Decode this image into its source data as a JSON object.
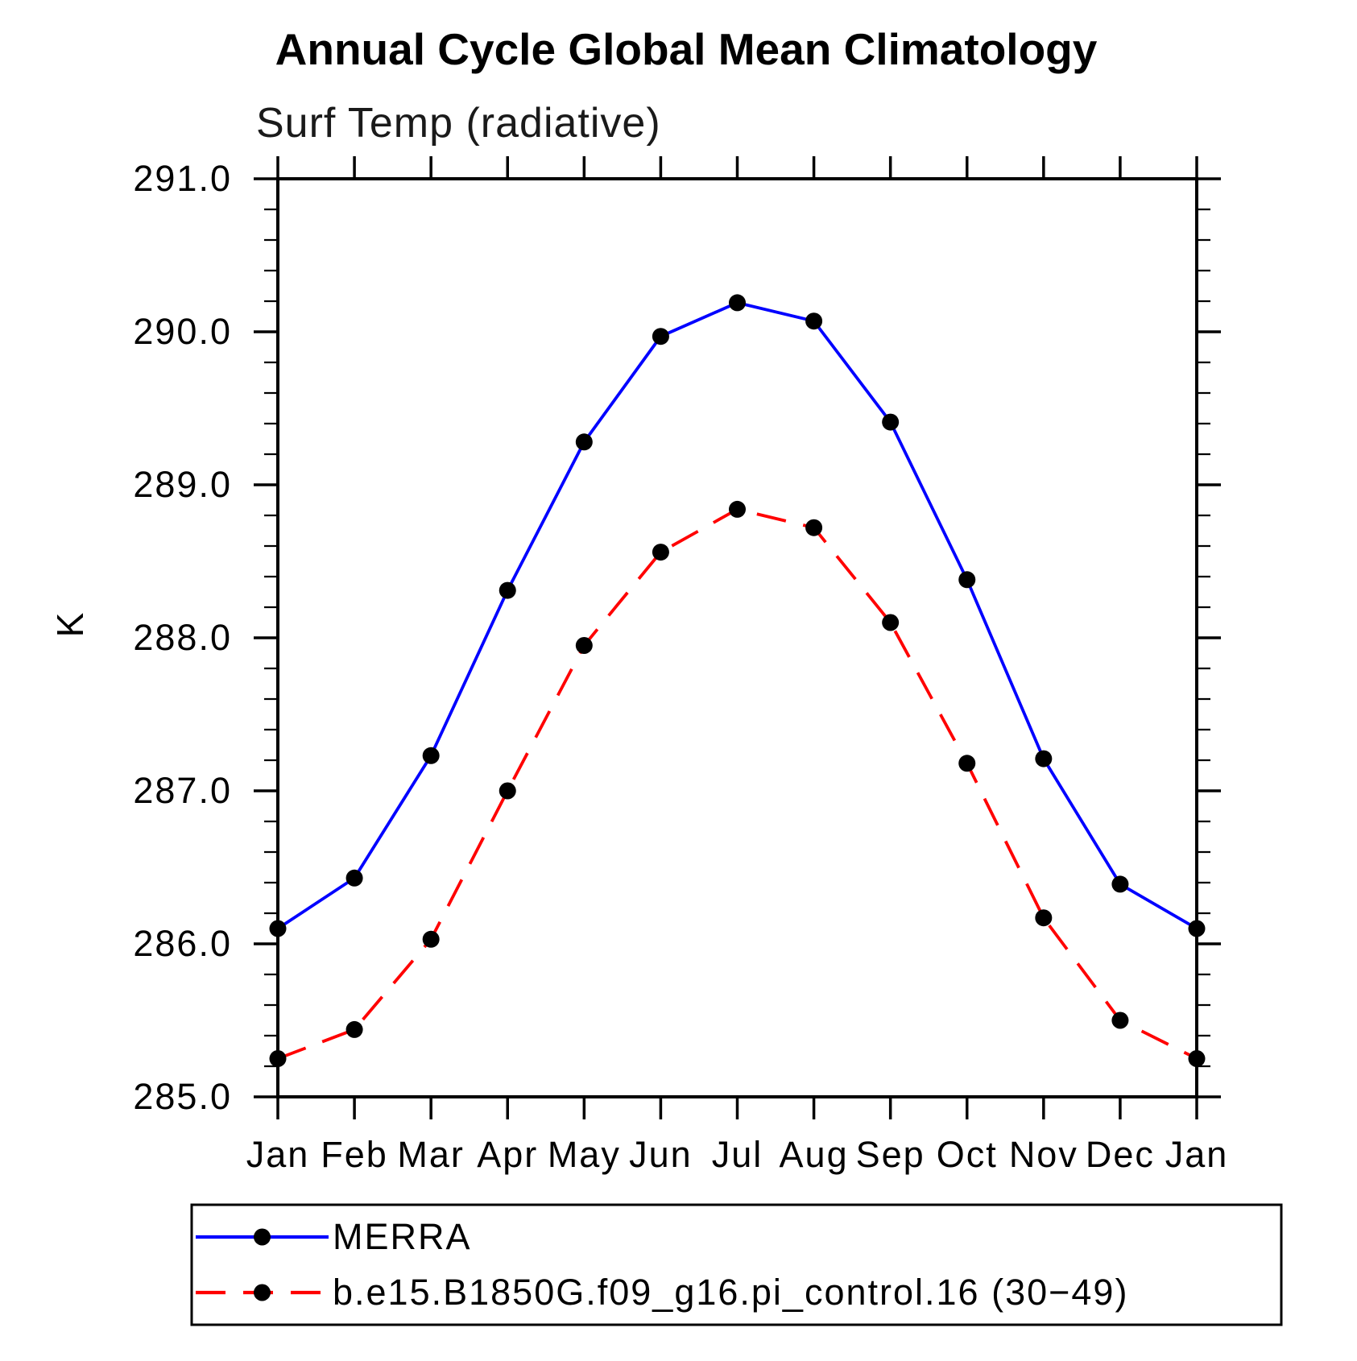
{
  "title": "Annual Cycle Global Mean Climatology",
  "subtitle": "Surf Temp (radiative)",
  "chart_data": {
    "type": "line",
    "title": "Annual Cycle Global Mean Climatology",
    "subtitle": "Surf Temp (radiative)",
    "xlabel": "",
    "ylabel": "K",
    "categories": [
      "Jan",
      "Feb",
      "Mar",
      "Apr",
      "May",
      "Jun",
      "Jul",
      "Aug",
      "Sep",
      "Oct",
      "Nov",
      "Dec",
      "Jan"
    ],
    "ylim": [
      285.0,
      291.0
    ],
    "ytick_major": 1.0,
    "ytick_minor": 0.2,
    "ytick_format_decimals": 1,
    "grid": false,
    "legend_position": "bottom",
    "frame_color": "#000000",
    "marker_color": "#000000",
    "series": [
      {
        "name": "MERRA",
        "color": "#0000ff",
        "style": "solid",
        "marker": "circle",
        "values": [
          286.1,
          286.43,
          287.23,
          288.31,
          289.28,
          289.97,
          290.19,
          290.07,
          289.41,
          288.38,
          287.21,
          286.39,
          286.1
        ]
      },
      {
        "name": "b.e15.B1850G.f09_g16.pi_control.16 (30−49)",
        "color": "#ff0000",
        "style": "dashed",
        "marker": "circle",
        "values": [
          285.25,
          285.44,
          286.03,
          287.0,
          287.95,
          288.56,
          288.84,
          288.72,
          288.1,
          287.18,
          286.17,
          285.5,
          285.25
        ]
      }
    ]
  }
}
